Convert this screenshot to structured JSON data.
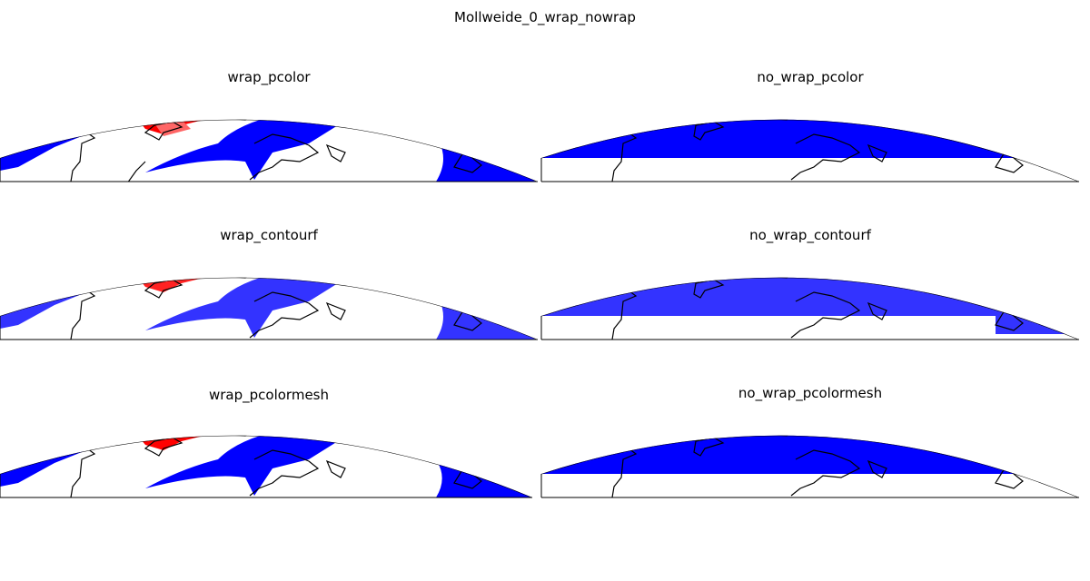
{
  "figure": {
    "suptitle": "Mollweide_0_wrap_nowrap"
  },
  "panels": [
    {
      "title": "wrap_pcolor",
      "variant": "wrap"
    },
    {
      "title": "no_wrap_pcolor",
      "variant": "nowrap"
    },
    {
      "title": "wrap_contourf",
      "variant": "wrap"
    },
    {
      "title": "no_wrap_contourf",
      "variant": "nowrap-contour"
    },
    {
      "title": "wrap_pcolormesh",
      "variant": "wrap"
    },
    {
      "title": "no_wrap_pcolormesh",
      "variant": "nowrap"
    }
  ],
  "colors": {
    "red": "#ff0000",
    "light_red": "#ff6666",
    "blue": "#0000ff",
    "contour_blue": "#3333ff",
    "coast": "#000000",
    "background": "#ffffff"
  }
}
